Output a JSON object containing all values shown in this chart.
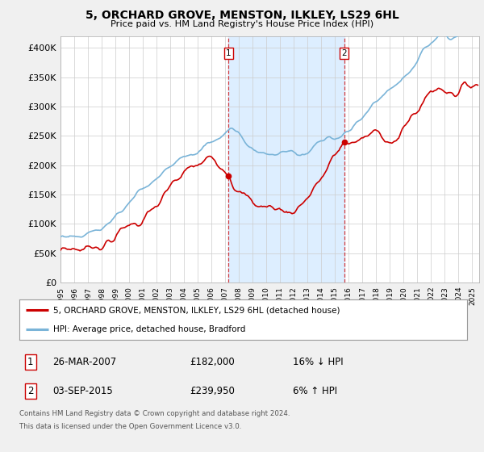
{
  "title": "5, ORCHARD GROVE, MENSTON, ILKLEY, LS29 6HL",
  "subtitle": "Price paid vs. HM Land Registry's House Price Index (HPI)",
  "ylim": [
    0,
    420000
  ],
  "xlim_start": 1995.0,
  "xlim_end": 2025.5,
  "yticks": [
    0,
    50000,
    100000,
    150000,
    200000,
    250000,
    300000,
    350000,
    400000
  ],
  "ytick_labels": [
    "£0",
    "£50K",
    "£100K",
    "£150K",
    "£200K",
    "£250K",
    "£300K",
    "£350K",
    "£400K"
  ],
  "hpi_color": "#7ab4d8",
  "price_color": "#cc0000",
  "transaction1_date": 2007.23,
  "transaction1_price": 182000,
  "transaction2_date": 2015.67,
  "transaction2_price": 239950,
  "legend_line1": "5, ORCHARD GROVE, MENSTON, ILKLEY, LS29 6HL (detached house)",
  "legend_line2": "HPI: Average price, detached house, Bradford",
  "table_row1_num": "1",
  "table_row1_date": "26-MAR-2007",
  "table_row1_price": "£182,000",
  "table_row1_hpi": "16% ↓ HPI",
  "table_row2_num": "2",
  "table_row2_date": "03-SEP-2015",
  "table_row2_price": "£239,950",
  "table_row2_hpi": "6% ↑ HPI",
  "footer_line1": "Contains HM Land Registry data © Crown copyright and database right 2024.",
  "footer_line2": "This data is licensed under the Open Government Licence v3.0.",
  "fig_bg": "#f0f0f0",
  "chart_bg": "#ffffff",
  "span_color": "#ddeeff"
}
